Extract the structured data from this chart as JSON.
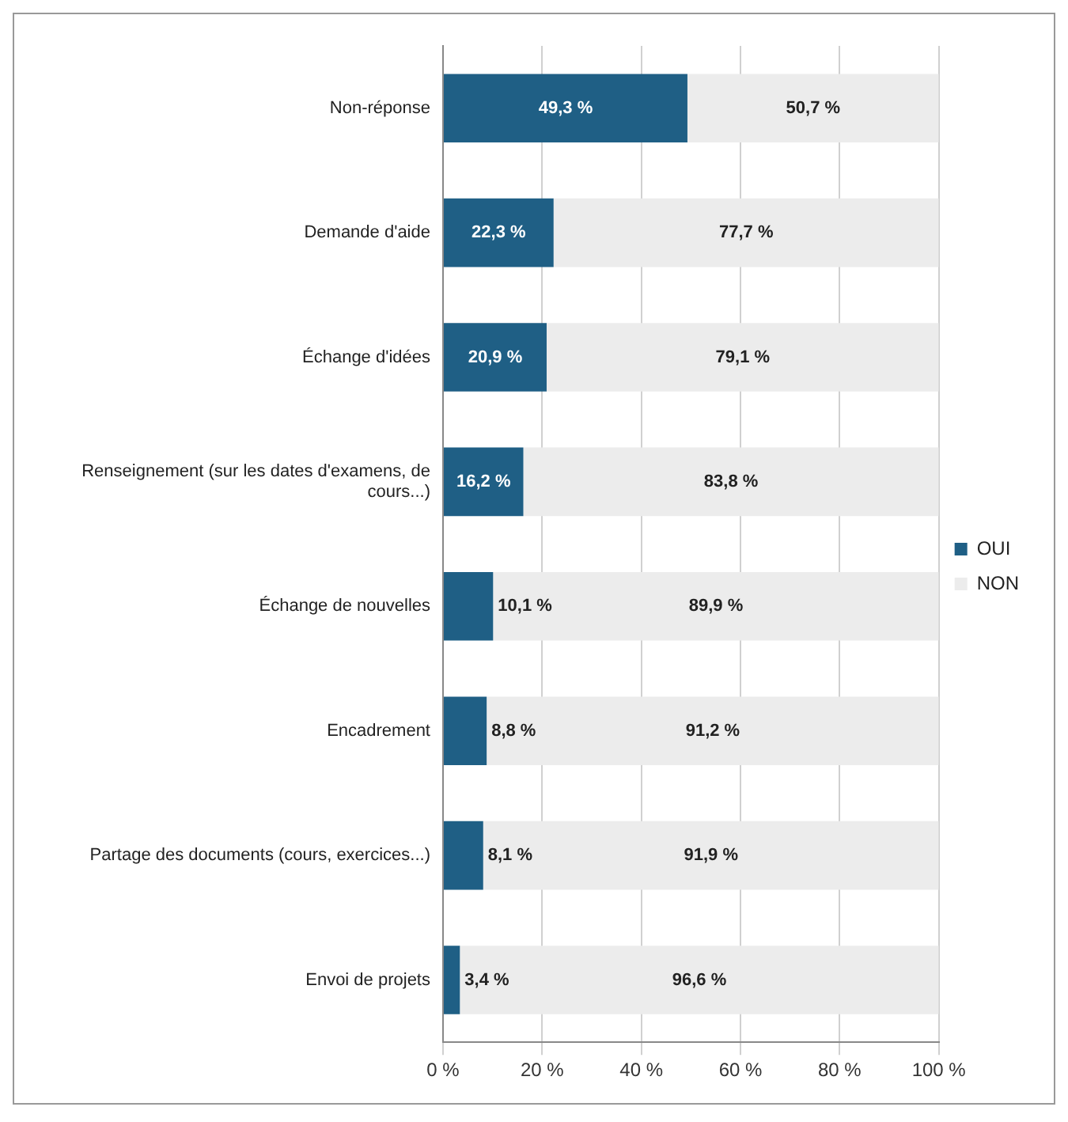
{
  "chart_data": {
    "type": "bar",
    "orientation": "horizontal",
    "stacked": true,
    "categories": [
      "Non-réponse",
      "Demande d'aide",
      "Échange d'idées",
      "Renseignement (sur les dates d'examens, de cours...)",
      "Échange de nouvelles",
      "Encadrement",
      "Partage des documents (cours, exercices...)",
      "Envoi de projets"
    ],
    "series": [
      {
        "name": "OUI",
        "color": "#1f5f85",
        "values": [
          49.3,
          22.3,
          20.9,
          16.2,
          10.1,
          8.8,
          8.1,
          3.4
        ],
        "value_labels": [
          "49,3 %",
          "22,3 %",
          "20,9 %",
          "16,2 %",
          "10,1 %",
          "8,8 %",
          "8,1 %",
          "3,4 %"
        ]
      },
      {
        "name": "NON",
        "color": "#ececec",
        "values": [
          50.7,
          77.7,
          79.1,
          83.8,
          89.9,
          91.2,
          91.9,
          96.6
        ],
        "value_labels": [
          "50,7 %",
          "77,7 %",
          "79,1 %",
          "83,8 %",
          "89,9 %",
          "91,2 %",
          "91,9 %",
          "96,6 %"
        ]
      }
    ],
    "xlim": [
      0,
      100
    ],
    "xticks": [
      {
        "value": 0,
        "label": "0 %"
      },
      {
        "value": 20,
        "label": "20 %"
      },
      {
        "value": 40,
        "label": "40 %"
      },
      {
        "value": 60,
        "label": "60 %"
      },
      {
        "value": 80,
        "label": "80 %"
      },
      {
        "value": 100,
        "label": "100 %"
      }
    ],
    "grid": "x",
    "legend": "right"
  }
}
